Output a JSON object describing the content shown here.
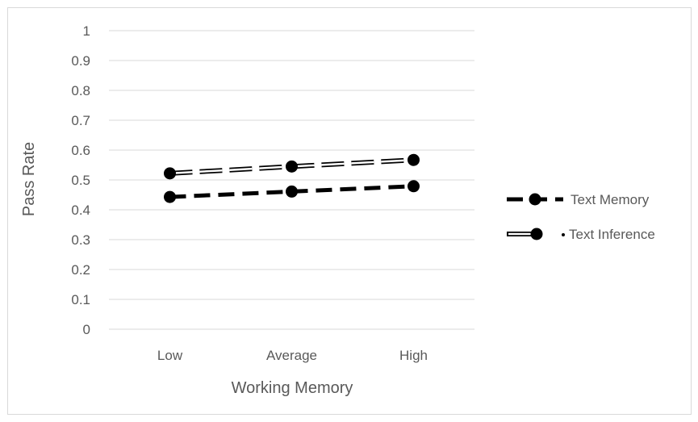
{
  "chart_data": {
    "type": "line",
    "title": "",
    "xlabel": "Working Memory",
    "ylabel": "Pass Rate",
    "categories": [
      "Low",
      "Average",
      "High"
    ],
    "ylim": [
      0,
      1
    ],
    "yticks": [
      "0",
      "0.1",
      "0.2",
      "0.3",
      "0.4",
      "0.5",
      "0.6",
      "0.7",
      "0.8",
      "0.9",
      "1"
    ],
    "grid": true,
    "legend_position": "right",
    "series": [
      {
        "name": "Text Memory",
        "values": [
          0.443,
          0.461,
          0.479
        ],
        "color": "#000000",
        "line_style": "dashed-thick",
        "marker": "circle"
      },
      {
        "name": "Text Inference",
        "values": [
          0.522,
          0.545,
          0.567
        ],
        "color": "#000000",
        "line_style": "double-dashed",
        "marker": "circle"
      }
    ]
  }
}
